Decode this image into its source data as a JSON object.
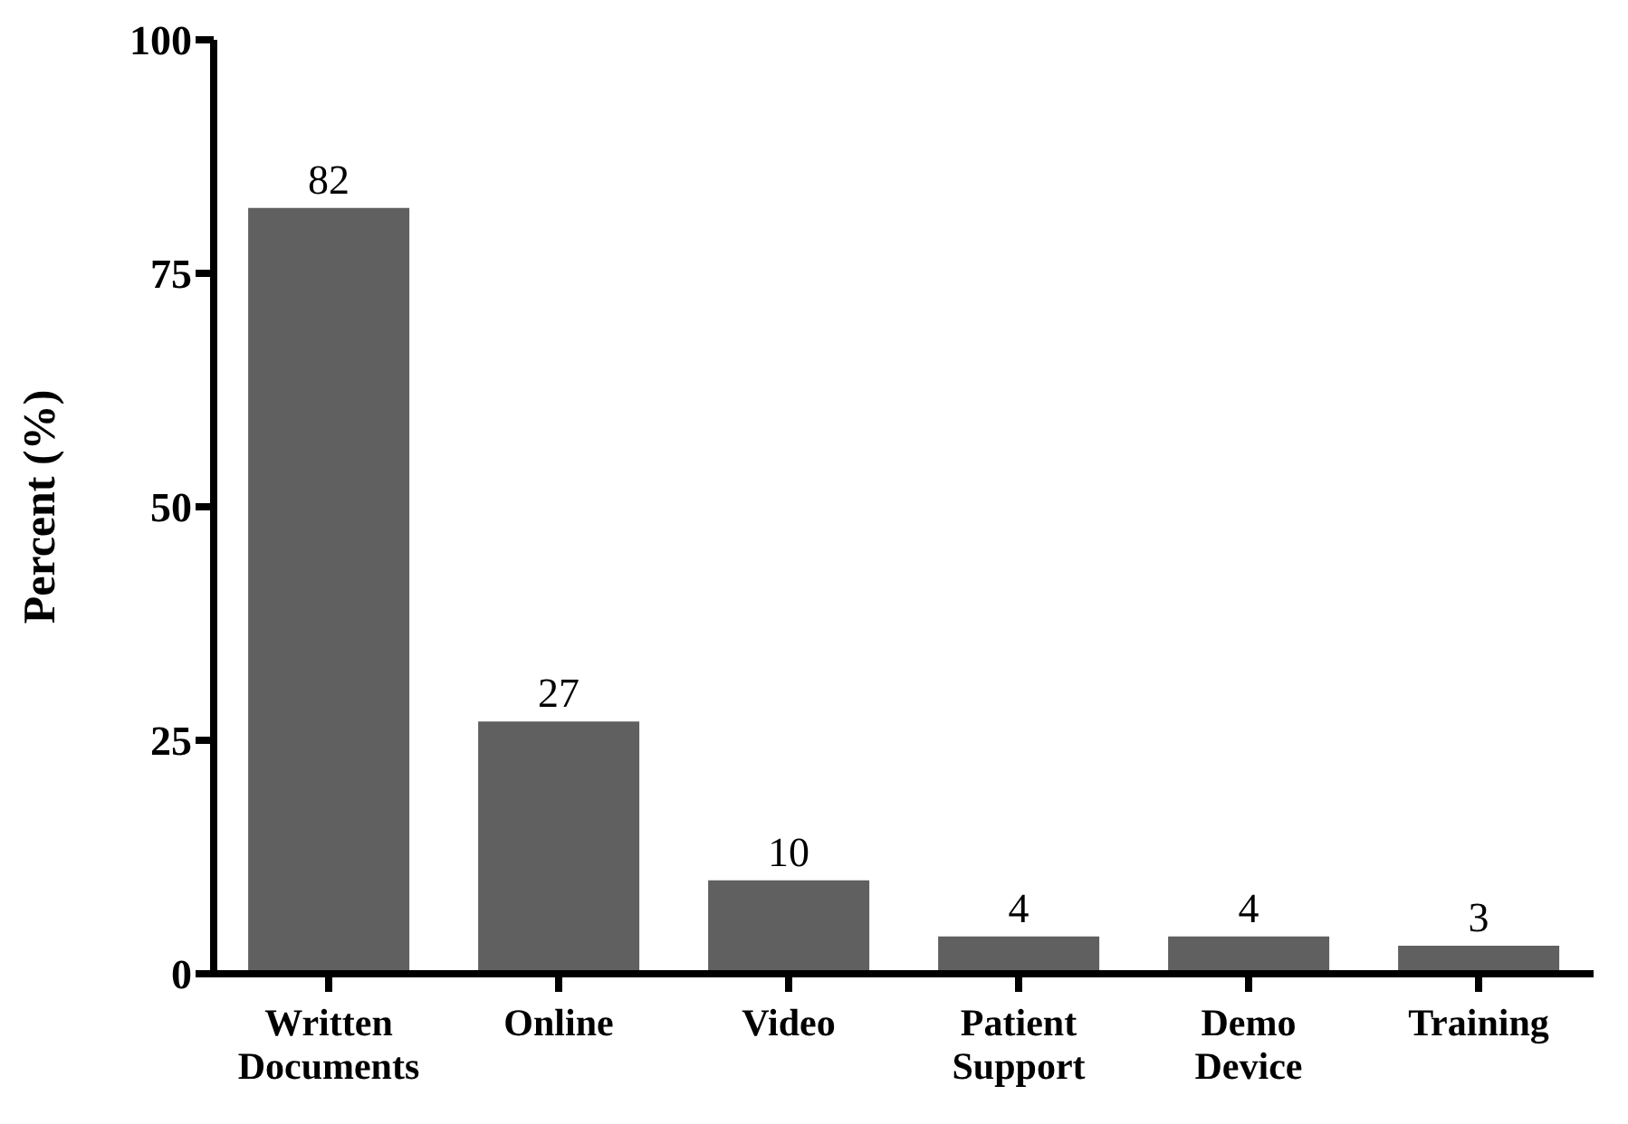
{
  "chart_data": {
    "type": "bar",
    "ylabel": "Percent (%)",
    "categories": [
      "Written Documents",
      "Online",
      "Video",
      "Patient Support",
      "Demo Device",
      "Training"
    ],
    "values": [
      82,
      27,
      10,
      4,
      4,
      3
    ],
    "color": "#606060",
    "ylim": [
      0,
      100
    ],
    "yticks": [
      0,
      25,
      50,
      75,
      100
    ],
    "grid": false,
    "legend": false,
    "data_labels": true
  }
}
